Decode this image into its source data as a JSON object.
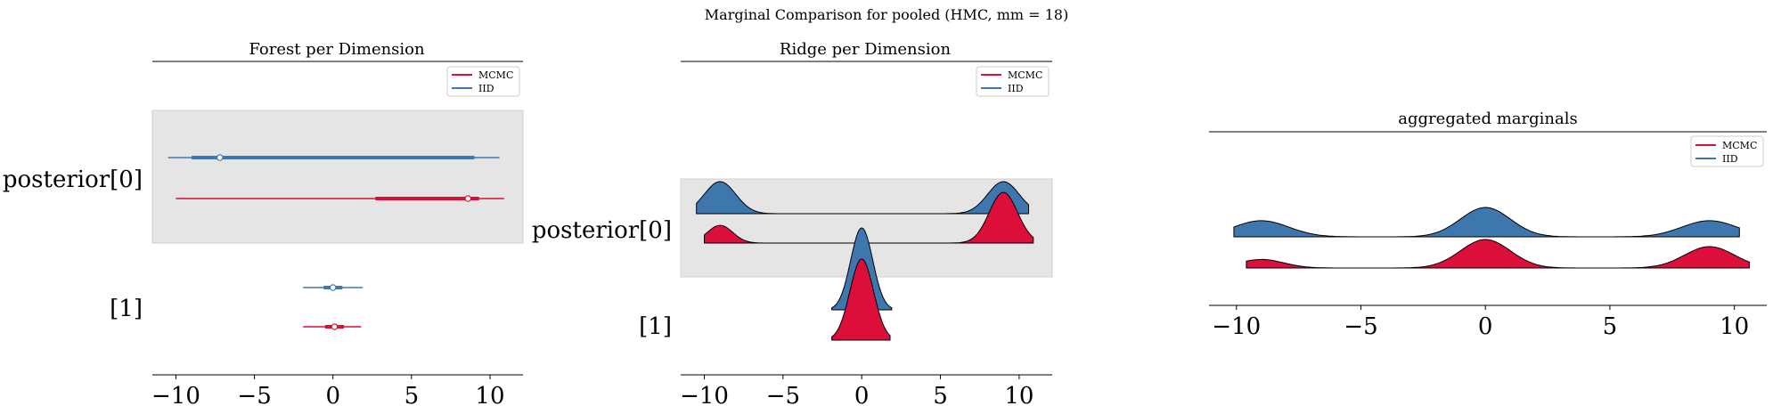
{
  "suptitle": "Marginal Comparison for pooled (HMC, mm = 18)",
  "colors": {
    "mcmc": "#DC0E3A",
    "iid": "#3E77AE",
    "band": "#E5E5E5"
  },
  "chart_data": [
    {
      "type": "forest",
      "title": "Forest per Dimension",
      "xlim": [
        -11.5,
        12.1
      ],
      "xticks": [
        -10,
        -5,
        0,
        5,
        10
      ],
      "xtick_labels": [
        "−10",
        "−5",
        "0",
        "5",
        "10"
      ],
      "ytick_labels": [
        "posterior[0]",
        "[1]"
      ],
      "legend": {
        "placement": "top-right",
        "entries": [
          "MCMC",
          "IID"
        ]
      },
      "series": [
        {
          "name": "IID",
          "rows": [
            {
              "dim": "posterior[0]",
              "hdi": [
                -10.5,
                10.6
              ],
              "iqr": [
                -9.0,
                9.0
              ],
              "median": -7.2
            },
            {
              "dim": "[1]",
              "hdi": [
                -1.9,
                1.9
              ],
              "iqr": [
                -0.6,
                0.6
              ],
              "median": 0.0
            }
          ]
        },
        {
          "name": "MCMC",
          "rows": [
            {
              "dim": "posterior[0]",
              "hdi": [
                -10.0,
                10.9
              ],
              "iqr": [
                2.7,
                9.3
              ],
              "median": 8.6
            },
            {
              "dim": "[1]",
              "hdi": [
                -1.9,
                1.8
              ],
              "iqr": [
                -0.5,
                0.7
              ],
              "median": 0.1
            }
          ]
        }
      ]
    },
    {
      "type": "ridge",
      "title": "Ridge per Dimension",
      "xlim": [
        -11.5,
        12.1
      ],
      "xticks": [
        -10,
        -5,
        0,
        5,
        10
      ],
      "xtick_labels": [
        "−10",
        "−5",
        "0",
        "5",
        "10"
      ],
      "ytick_labels": [
        "posterior[0]",
        "[1]"
      ],
      "legend": {
        "placement": "top-right",
        "entries": [
          "MCMC",
          "IID"
        ]
      },
      "series": [
        {
          "name": "IID",
          "rows": [
            {
              "dim": "posterior[0]",
              "range": [
                -10.5,
                10.6
              ],
              "peaks": [
                [
                  -9,
                  1.0,
                  1.0
                ],
                [
                  9,
                  1.0,
                  1.0
                ]
              ]
            },
            {
              "dim": "[1]",
              "range": [
                -1.9,
                1.9
              ],
              "peaks": [
                [
                  0,
                  1.0,
                  0.7
                ]
              ]
            }
          ]
        },
        {
          "name": "MCMC",
          "rows": [
            {
              "dim": "posterior[0]",
              "range": [
                -10.0,
                10.9
              ],
              "peaks": [
                [
                  -9,
                  0.35,
                  0.8
                ],
                [
                  9,
                  1.0,
                  0.9
                ]
              ]
            },
            {
              "dim": "[1]",
              "range": [
                -1.9,
                1.8
              ],
              "peaks": [
                [
                  0,
                  1.0,
                  0.75
                ]
              ]
            }
          ]
        }
      ]
    },
    {
      "type": "ridge",
      "title": "aggregated marginals",
      "xlim": [
        -11.1,
        11.3
      ],
      "xticks": [
        -10,
        -5,
        0,
        5,
        10
      ],
      "xtick_labels": [
        "−10",
        "−5",
        "0",
        "5",
        "10"
      ],
      "legend": {
        "placement": "top-right",
        "entries": [
          "MCMC",
          "IID"
        ]
      },
      "series": [
        {
          "name": "IID",
          "range": [
            -10.1,
            10.2
          ],
          "peaks": [
            [
              -9,
              0.55,
              1.1
            ],
            [
              0,
              1.0,
              1.0
            ],
            [
              9,
              0.55,
              1.1
            ]
          ]
        },
        {
          "name": "MCMC",
          "range": [
            -9.6,
            10.6
          ],
          "peaks": [
            [
              -9,
              0.3,
              0.9
            ],
            [
              0,
              1.0,
              1.0
            ],
            [
              9,
              0.75,
              1.0
            ]
          ]
        }
      ]
    }
  ]
}
